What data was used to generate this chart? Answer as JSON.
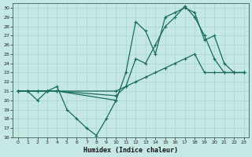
{
  "title": "",
  "xlabel": "Humidex (Indice chaleur)",
  "xlim": [
    -0.5,
    23.5
  ],
  "ylim": [
    16,
    30.5
  ],
  "yticks": [
    16,
    17,
    18,
    19,
    20,
    21,
    22,
    23,
    24,
    25,
    26,
    27,
    28,
    29,
    30
  ],
  "xticks": [
    0,
    1,
    2,
    3,
    4,
    5,
    6,
    7,
    8,
    9,
    10,
    11,
    12,
    13,
    14,
    15,
    16,
    17,
    18,
    19,
    20,
    21,
    22,
    23
  ],
  "background_color": "#c5e8e5",
  "grid_color": "#a8d4d0",
  "line_color": "#1a6b5a",
  "line1_x": [
    0,
    1,
    2,
    3,
    4,
    5,
    6,
    7,
    8,
    9,
    10
  ],
  "line1_y": [
    21.0,
    21.0,
    20.0,
    21.0,
    21.5,
    19.0,
    18.0,
    17.0,
    16.2,
    18.0,
    20.0
  ],
  "line2_x": [
    0,
    1,
    2,
    3,
    4,
    10,
    11,
    12,
    13,
    14,
    15,
    16,
    17,
    18,
    19,
    20,
    21,
    22,
    23
  ],
  "line2_y": [
    21.0,
    21.0,
    21.0,
    21.0,
    21.0,
    20.0,
    23.0,
    28.5,
    27.5,
    25.0,
    29.0,
    29.5,
    30.0,
    29.5,
    26.5,
    27.0,
    24.0,
    23.0,
    23.0
  ],
  "line3_x": [
    0,
    1,
    2,
    3,
    4,
    10,
    11,
    12,
    13,
    14,
    15,
    16,
    17,
    18,
    19,
    20,
    21,
    22,
    23
  ],
  "line3_y": [
    21.0,
    21.0,
    21.0,
    21.0,
    21.0,
    20.5,
    21.5,
    24.5,
    24.0,
    26.0,
    28.0,
    29.0,
    30.2,
    29.0,
    27.0,
    24.5,
    23.0,
    23.0,
    23.0
  ],
  "line4_x": [
    0,
    1,
    2,
    3,
    4,
    10,
    11,
    12,
    13,
    14,
    15,
    16,
    17,
    18,
    19,
    20,
    21,
    22,
    23
  ],
  "line4_y": [
    21.0,
    21.0,
    21.0,
    21.0,
    21.0,
    21.0,
    21.5,
    22.0,
    22.5,
    23.0,
    23.5,
    24.0,
    24.5,
    25.0,
    23.0,
    23.0,
    23.0,
    23.0,
    23.0
  ]
}
